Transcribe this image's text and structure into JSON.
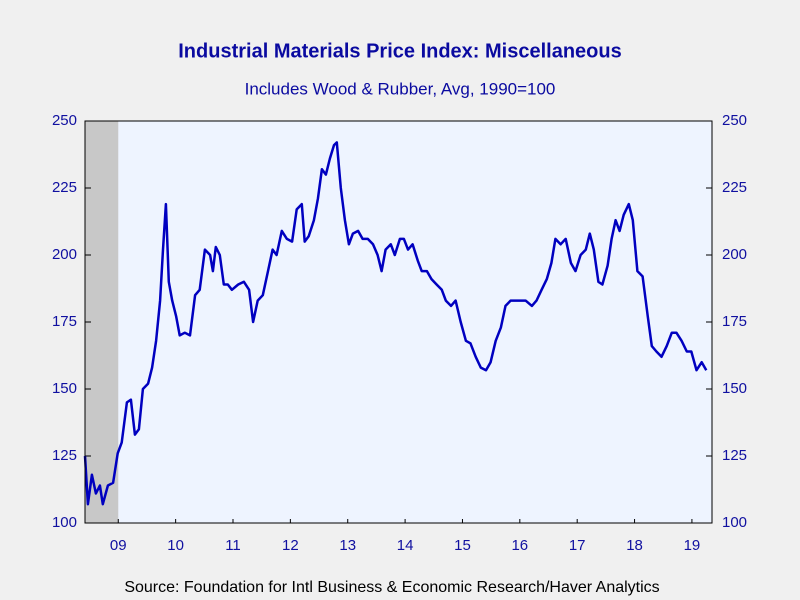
{
  "chart_data": {
    "type": "line",
    "title": "Industrial Materials Price Index: Miscellaneous",
    "subtitle": "Includes Wood & Rubber, Avg, 1990=100",
    "source": "Source:  Foundation for Intl Business & Economic Research/Haver Analytics",
    "xlim": [
      2008.92,
      2019.85
    ],
    "ylim": [
      100,
      250
    ],
    "yticks": [
      100,
      125,
      150,
      175,
      200,
      225,
      250
    ],
    "y2lim": [
      100,
      250
    ],
    "y2ticks": [
      100,
      125,
      150,
      175,
      200,
      225,
      250
    ],
    "xticks": [
      {
        "value": 2009.5,
        "label": "09"
      },
      {
        "value": 2010.5,
        "label": "10"
      },
      {
        "value": 2011.5,
        "label": "11"
      },
      {
        "value": 2012.5,
        "label": "12"
      },
      {
        "value": 2013.5,
        "label": "13"
      },
      {
        "value": 2014.5,
        "label": "14"
      },
      {
        "value": 2015.5,
        "label": "15"
      },
      {
        "value": 2016.5,
        "label": "16"
      },
      {
        "value": 2017.5,
        "label": "17"
      },
      {
        "value": 2018.5,
        "label": "18"
      },
      {
        "value": 2019.5,
        "label": "19"
      }
    ],
    "recession": [
      2008.92,
      2009.5
    ],
    "recession_color": "#c8c8c8",
    "plot_background": "#eef4ff",
    "x": [
      2008.92,
      2008.97,
      2009.04,
      2009.11,
      2009.18,
      2009.23,
      2009.32,
      2009.41,
      2009.49,
      2009.56,
      2009.65,
      2009.72,
      2009.79,
      2009.86,
      2009.93,
      2010.02,
      2010.09,
      2010.16,
      2010.23,
      2010.28,
      2010.33,
      2010.38,
      2010.44,
      2010.51,
      2010.57,
      2010.66,
      2010.75,
      2010.84,
      2010.92,
      2011.01,
      2011.1,
      2011.15,
      2011.2,
      2011.27,
      2011.34,
      2011.41,
      2011.48,
      2011.59,
      2011.69,
      2011.78,
      2011.85,
      2011.93,
      2012.02,
      2012.11,
      2012.19,
      2012.26,
      2012.35,
      2012.44,
      2012.53,
      2012.61,
      2012.7,
      2012.75,
      2012.82,
      2012.91,
      2012.98,
      2013.05,
      2013.12,
      2013.19,
      2013.26,
      2013.31,
      2013.38,
      2013.45,
      2013.52,
      2013.59,
      2013.68,
      2013.76,
      2013.85,
      2013.94,
      2014.02,
      2014.09,
      2014.16,
      2014.25,
      2014.32,
      2014.41,
      2014.48,
      2014.55,
      2014.63,
      2014.72,
      2014.79,
      2014.88,
      2014.96,
      2015.05,
      2015.14,
      2015.21,
      2015.3,
      2015.38,
      2015.47,
      2015.56,
      2015.64,
      2015.73,
      2015.82,
      2015.91,
      2015.99,
      2016.08,
      2016.17,
      2016.25,
      2016.34,
      2016.43,
      2016.51,
      2016.6,
      2016.71,
      2016.79,
      2016.88,
      2016.97,
      2017.05,
      2017.12,
      2017.21,
      2017.3,
      2017.39,
      2017.47,
      2017.56,
      2017.65,
      2017.72,
      2017.79,
      2017.87,
      2017.94,
      2018.03,
      2018.1,
      2018.17,
      2018.24,
      2018.31,
      2018.4,
      2018.47,
      2018.55,
      2018.64,
      2018.73,
      2018.8,
      2018.88,
      2018.97,
      2019.06,
      2019.15,
      2019.23,
      2019.32,
      2019.41,
      2019.49,
      2019.58,
      2019.67,
      2019.75
    ],
    "series": [
      {
        "color": "#0000c0",
        "values": [
          125,
          107,
          118,
          111,
          114,
          107,
          114,
          115,
          126,
          130,
          145,
          146,
          133,
          135,
          150,
          152,
          158,
          168,
          183,
          202,
          219,
          190,
          183,
          177,
          170,
          171,
          170,
          185,
          187,
          202,
          200,
          194,
          203,
          200,
          189,
          189,
          187,
          189,
          190,
          187,
          175,
          183,
          185,
          194,
          202,
          200,
          209,
          206,
          205,
          217,
          219,
          205,
          207,
          213,
          221,
          232,
          230,
          236,
          241,
          242,
          225,
          213,
          204,
          208,
          209,
          206,
          206,
          204,
          200,
          194,
          202,
          204,
          200,
          206,
          206,
          202,
          204,
          198,
          194,
          194,
          191,
          189,
          187,
          183,
          181,
          183,
          175,
          168,
          167,
          162,
          158,
          157,
          160,
          168,
          173,
          181,
          183,
          183,
          183,
          183,
          181,
          183,
          187,
          191,
          197,
          206,
          204,
          206,
          197,
          194,
          200,
          202,
          208,
          202,
          190,
          189,
          196,
          206,
          213,
          209,
          215,
          219,
          213,
          194,
          192,
          177,
          166,
          164,
          162,
          166,
          171,
          171,
          168,
          164,
          164,
          157,
          160,
          157
        ]
      }
    ]
  }
}
